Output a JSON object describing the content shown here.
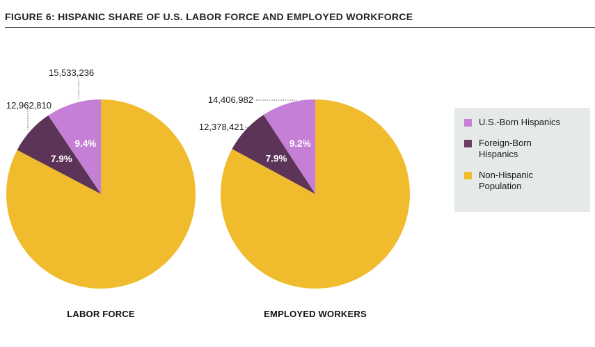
{
  "figure": {
    "title": "FIGURE 6: HISPANIC SHARE OF U.S. LABOR FORCE AND EMPLOYED WORKFORCE"
  },
  "colors": {
    "us_born": "#c57fd6",
    "foreign_born": "#5c3457",
    "non_hispanic": "#f0bb2d"
  },
  "legend": {
    "items": [
      {
        "label": "U.S.-Born Hispanics",
        "color": "#c57fd6"
      },
      {
        "label": "Foreign-Born Hispanics",
        "color": "#6b3d63"
      },
      {
        "label": "Non-Hispanic Population",
        "color": "#f0bb2d"
      }
    ]
  },
  "chart_data": [
    {
      "type": "pie",
      "title": "LABOR FORCE",
      "slices": [
        {
          "name": "U.S.-Born Hispanics",
          "value": 9.4,
          "label": "9.4%",
          "count": "15,533,236"
        },
        {
          "name": "Foreign-Born Hispanics",
          "value": 7.9,
          "label": "7.9%",
          "count": "12,962,810"
        },
        {
          "name": "Non-Hispanic Population",
          "value": 82.7
        }
      ]
    },
    {
      "type": "pie",
      "title": "EMPLOYED WORKERS",
      "slices": [
        {
          "name": "U.S.-Born Hispanics",
          "value": 9.2,
          "label": "9.2%",
          "count": "14,406,982"
        },
        {
          "name": "Foreign-Born Hispanics",
          "value": 7.9,
          "label": "7.9%",
          "count": "12,378,421"
        },
        {
          "name": "Non-Hispanic Population",
          "value": 82.9
        }
      ]
    }
  ]
}
